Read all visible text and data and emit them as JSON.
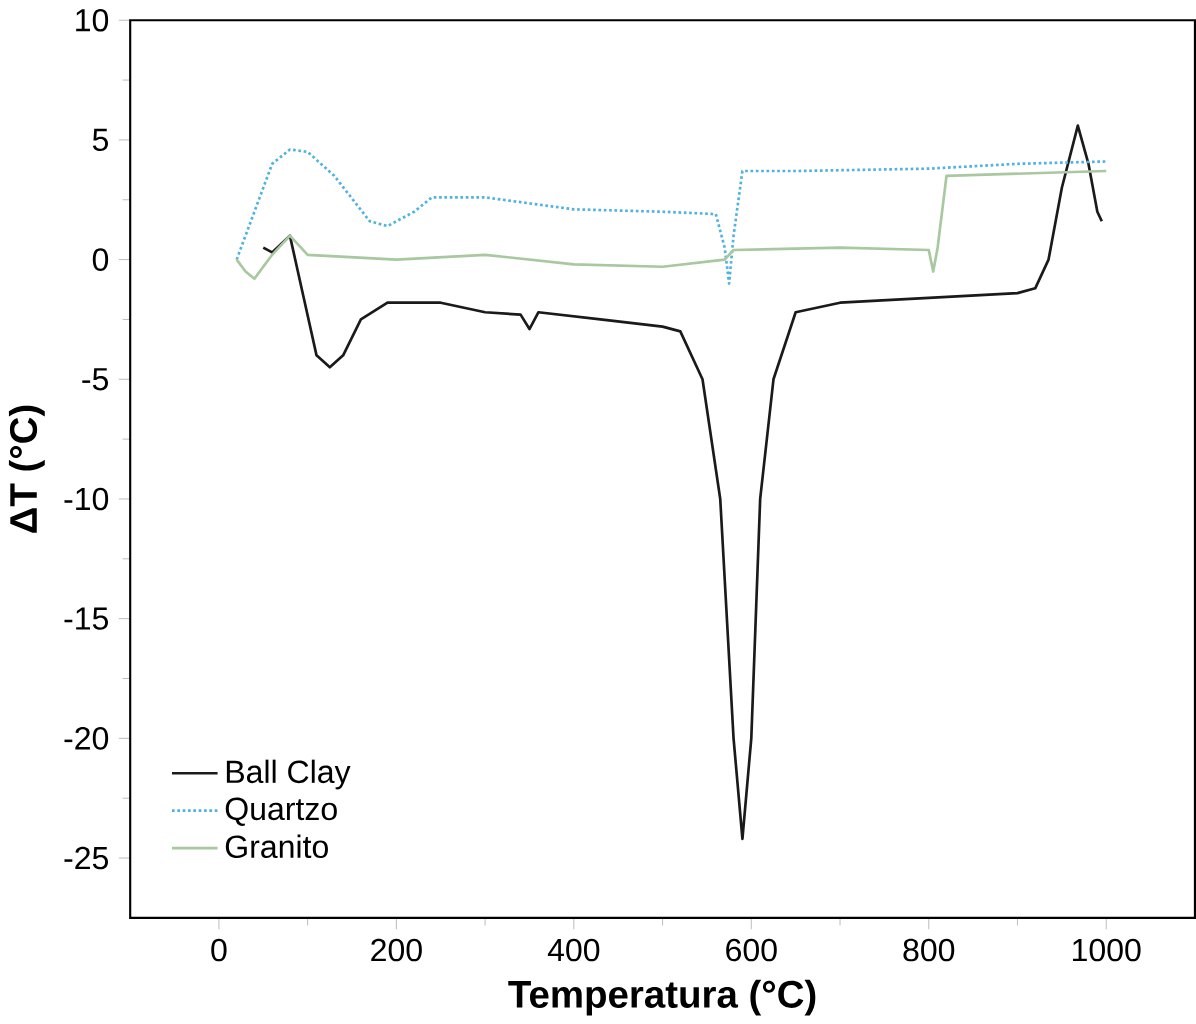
{
  "chart_data": {
    "type": "line",
    "xlabel": "Temperatura (°C)",
    "ylabel": "ΔT (°C)",
    "xlim": [
      -100,
      1100
    ],
    "ylim": [
      -27.5,
      10
    ],
    "xticks": [
      0,
      200,
      400,
      600,
      800,
      1000
    ],
    "yticks": [
      -25,
      -20,
      -15,
      -10,
      -5,
      0,
      5,
      10
    ],
    "legend": "bottom left",
    "grid": false,
    "marker": "none",
    "series": [
      {
        "name": "Ball Clay",
        "color": "#1a1a1a",
        "line_style": "solid",
        "x": [
          50,
          60,
          80,
          95,
          110,
          125,
          140,
          160,
          190,
          250,
          300,
          340,
          350,
          360,
          430,
          500,
          520,
          545,
          565,
          580,
          590,
          600,
          610,
          625,
          650,
          700,
          800,
          900,
          920,
          935,
          950,
          968,
          980,
          990,
          995
        ],
        "values": [
          0.5,
          0.3,
          1,
          -1.5,
          -4,
          -4.5,
          -4,
          -2.5,
          -1.8,
          -1.8,
          -2.2,
          -2.3,
          -2.9,
          -2.2,
          -2.5,
          -2.8,
          -3,
          -5,
          -10,
          -20,
          -24.2,
          -20,
          -10,
          -5,
          -2.2,
          -1.8,
          -1.6,
          -1.4,
          -1.2,
          0,
          3,
          5.6,
          4,
          2,
          1.6
        ]
      },
      {
        "name": "Quartzo",
        "color": "#4fb3e0",
        "line_style": "dotted",
        "x": [
          20,
          40,
          60,
          80,
          100,
          130,
          170,
          190,
          220,
          240,
          300,
          400,
          500,
          560,
          570,
          575,
          580,
          590,
          650,
          800,
          900,
          1000
        ],
        "values": [
          0,
          2,
          4,
          4.6,
          4.5,
          3.5,
          1.6,
          1.4,
          2,
          2.6,
          2.6,
          2.1,
          2,
          1.9,
          0.5,
          -1,
          1,
          3.7,
          3.7,
          3.8,
          4,
          4.1
        ]
      },
      {
        "name": "Granito",
        "color": "#a8c8a0",
        "line_style": "solid",
        "x": [
          20,
          30,
          40,
          60,
          80,
          100,
          200,
          300,
          400,
          500,
          570,
          580,
          700,
          800,
          805,
          810,
          820,
          1000
        ],
        "values": [
          0,
          -0.5,
          -0.8,
          0.2,
          1,
          0.2,
          0,
          0.2,
          -0.2,
          -0.3,
          0,
          0.4,
          0.5,
          0.4,
          -0.5,
          0.5,
          3.5,
          3.7
        ]
      }
    ]
  }
}
